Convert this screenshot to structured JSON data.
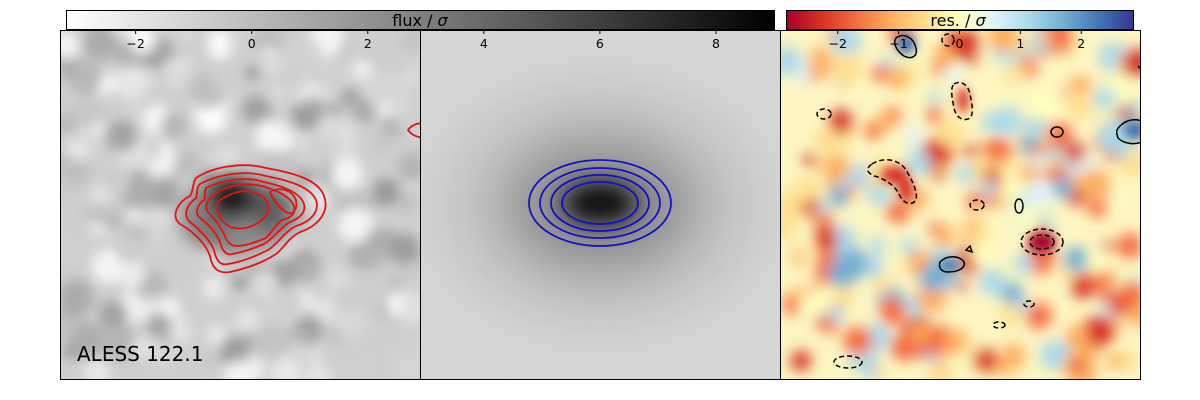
{
  "chart_data": [
    {
      "type": "heatmap",
      "panel": "observed",
      "colormap": "gray_r",
      "contour_color": "#e81010",
      "annotation": "ALESS 122.1",
      "grid": false
    },
    {
      "type": "heatmap",
      "panel": "model",
      "colormap": "gray_r",
      "contour_color": "#1010d0",
      "grid": false
    },
    {
      "type": "heatmap",
      "panel": "residual",
      "colormap": "RdYlBu",
      "contour_color": "#000000",
      "grid": false
    }
  ],
  "colorbars": [
    {
      "label_main": "flux / ",
      "label_sym": "σ",
      "cmap_stops": [
        "#ffffff",
        "#000000"
      ],
      "range": [
        -3.2,
        9.0
      ],
      "ticks": [
        {
          "value": -2,
          "label": "−2"
        },
        {
          "value": 0,
          "label": "0"
        },
        {
          "value": 2,
          "label": "2"
        },
        {
          "value": 4,
          "label": "4"
        },
        {
          "value": 6,
          "label": "6"
        },
        {
          "value": 8,
          "label": "8"
        }
      ]
    },
    {
      "label_main": "res. / ",
      "label_sym": "σ",
      "cmap_stops": [
        "#a50026",
        "#d73027",
        "#f46d43",
        "#fdae61",
        "#fee090",
        "#ffffbf",
        "#e0f3f8",
        "#abd9e9",
        "#74add1",
        "#4575b4",
        "#313695"
      ],
      "range": [
        -2.85,
        2.85
      ],
      "ticks": [
        {
          "value": -2,
          "label": "−2"
        },
        {
          "value": -1,
          "label": "−1"
        },
        {
          "value": 0,
          "label": "0"
        },
        {
          "value": 1,
          "label": "1"
        },
        {
          "value": 2,
          "label": "2"
        }
      ]
    }
  ]
}
